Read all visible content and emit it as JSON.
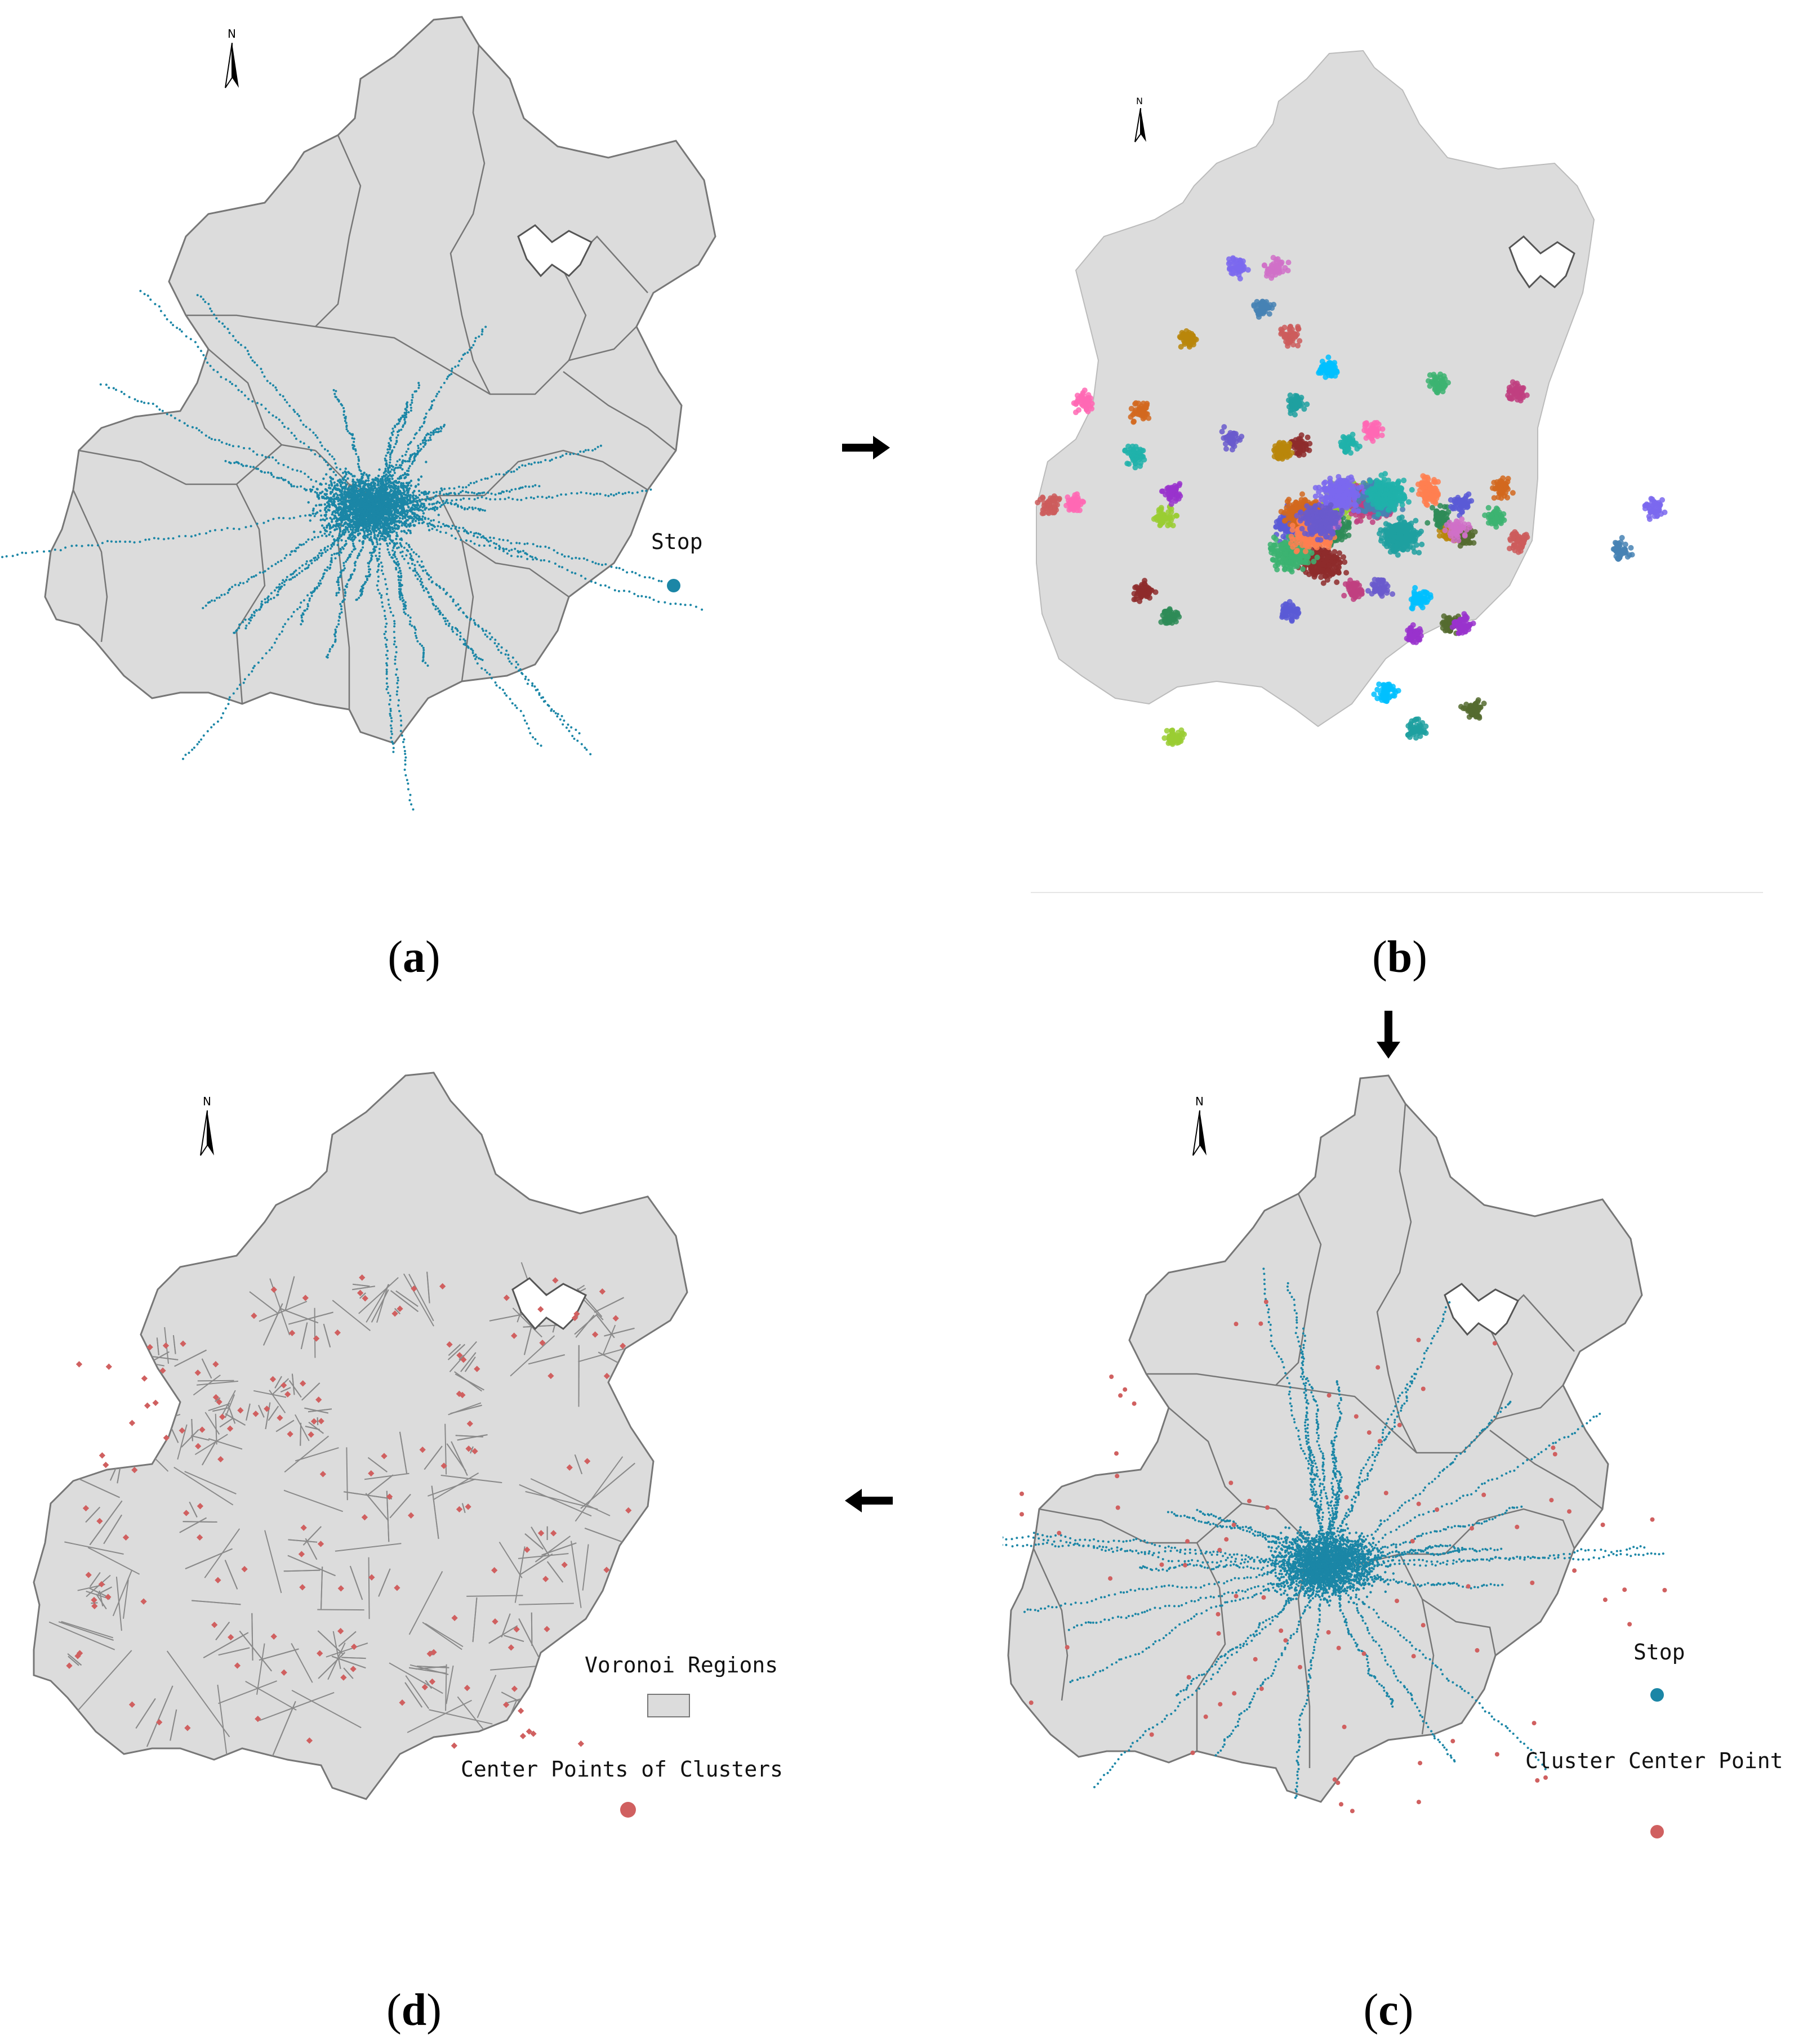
{
  "north_label": "N",
  "panels": {
    "a": {
      "caption": "a",
      "legend": {
        "stop_label": "Stop"
      },
      "colors": {
        "stop": "#1b86a6"
      }
    },
    "b": {
      "caption": "b"
    },
    "c": {
      "caption": "c",
      "legend": {
        "stop_label": "Stop",
        "center_label": "Cluster Center Point"
      },
      "colors": {
        "stop": "#1b86a6",
        "center": "#d06060"
      }
    },
    "d": {
      "caption": "d",
      "legend": {
        "voronoi_label": "Voronoi Regions",
        "center_label": "Center Points of Clusters"
      },
      "colors": {
        "center": "#d06060",
        "region": "#dcdcdc"
      }
    }
  },
  "colors": {
    "land": "#dcdcdc",
    "border": "#777777"
  },
  "flow_arrows": [
    "right-arrow",
    "down-arrow",
    "left-arrow"
  ]
}
